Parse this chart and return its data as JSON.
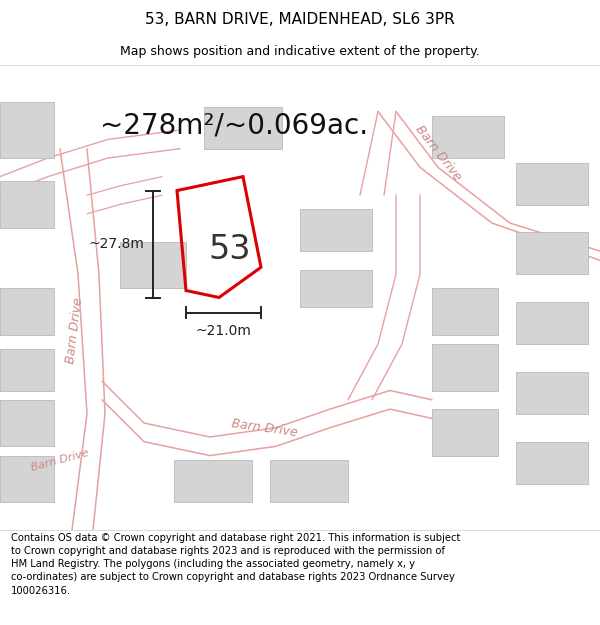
{
  "title": "53, BARN DRIVE, MAIDENHEAD, SL6 3PR",
  "subtitle": "Map shows position and indicative extent of the property.",
  "area_text": "~278m²/~0.069ac.",
  "label_53": "53",
  "dim_height": "~27.8m",
  "dim_width": "~21.0m",
  "bg_color": "#efefef",
  "road_fill_color": "#ffffff",
  "road_color": "#e8a0a0",
  "building_color": "#d4d4d4",
  "building_edge": "#b8b8b8",
  "plot_color": "#dd0000",
  "dim_color": "#222222",
  "road_label_color": "#cc8888",
  "title_fontsize": 11,
  "subtitle_fontsize": 9,
  "area_fontsize": 20,
  "label_fontsize": 24,
  "dim_fontsize": 10,
  "footer_fontsize": 7.2,
  "road_label_fontsize": 9,
  "footer_text": "Contains OS data © Crown copyright and database right 2021. This information is subject to Crown copyright and database rights 2023 and is reproduced with the permission of HM Land Registry. The polygons (including the associated geometry, namely x, y co-ordinates) are subject to Crown copyright and database rights 2023 Ordnance Survey 100026316.",
  "figsize": [
    6.0,
    6.25
  ],
  "dpi": 100
}
